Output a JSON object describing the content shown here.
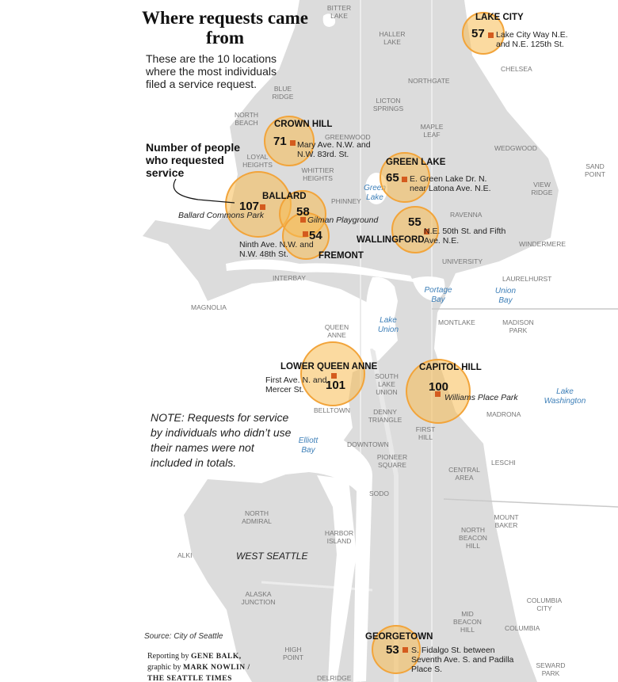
{
  "title": "Where requests came from",
  "intro": "These are the 10 locations where the most individuals filed a service request.",
  "callout": "Number of people who requested service",
  "note": "NOTE: Requests for service by individuals who didn’t use their names were not included in totals.",
  "source": "Source: City of Seattle",
  "credits": {
    "line1_prefix": "Reporting by",
    "line1_name": "GENE BALK,",
    "line2_prefix": "graphic by",
    "line2_name": "MARK NOWLIN /",
    "line3_name": "THE SEATTLE TIMES"
  },
  "locations": [
    {
      "count": "57",
      "name": "LAKE CITY",
      "address": "Lake City Way N.E. and N.E. 125th St."
    },
    {
      "count": "71",
      "name": "CROWN HILL",
      "address": "Mary Ave. N.W. and N.W. 83rd. St."
    },
    {
      "count": "65",
      "name": "GREEN LAKE",
      "address": "E. Green Lake Dr. N. near Latona Ave. N.E."
    },
    {
      "count": "107",
      "name": "BALLARD",
      "address": "Ballard Commons Park"
    },
    {
      "count": "58",
      "name": "",
      "address": "Gilman Playground"
    },
    {
      "count": "54",
      "name": "FREMONT",
      "address": "Ninth Ave. N.W. and N.W. 48th St."
    },
    {
      "count": "55",
      "name": "WALLINGFORD",
      "address": "N.E. 50th St. and Fifth Ave. N.E."
    },
    {
      "count": "101",
      "name": "LOWER QUEEN ANNE",
      "address": "First Ave. N. and Mercer St."
    },
    {
      "count": "100",
      "name": "CAPITOL HILL",
      "address": "Williams Place Park"
    },
    {
      "count": "53",
      "name": "GEORGETOWN",
      "address": "S. Fidalgo St. between Seventh Ave. S. and Padilla Place S."
    }
  ],
  "neighborhoods": [
    "BITTER LAKE",
    "HALLER LAKE",
    "NORTHGATE",
    "CHELSEA",
    "BLUE RIDGE",
    "LICTON SPRINGS",
    "NORTH BEACH",
    "GREENWOOD",
    "MAPLE LEAF",
    "WEDGWOOD",
    "LOYAL HEIGHTS",
    "WHITTIER HEIGHTS",
    "SAND POINT",
    "VIEW RIDGE",
    "PHINNEY",
    "RAVENNA",
    "WINDERMERE",
    "UNIVERSITY",
    "LAURELHURST",
    "INTERBAY",
    "MAGNOLIA",
    "MONTLAKE",
    "MADISON PARK",
    "QUEEN ANNE",
    "SOUTH LAKE UNION",
    "BELLTOWN",
    "DENNY TRIANGLE",
    "MADRONA",
    "FIRST HILL",
    "DOWNTOWN",
    "PIONEER SQUARE",
    "CENTRAL AREA",
    "LESCHI",
    "SODO",
    "NORTH ADMIRAL",
    "HARBOR ISLAND",
    "MOUNT BAKER",
    "NORTH BEACON HILL",
    "ALKI",
    "WEST SEATTLE",
    "ALASKA JUNCTION",
    "MID BEACON HILL",
    "COLUMBIA CITY",
    "COLUMBIA",
    "HIGH POINT",
    "SEWARD PARK",
    "DELRIDGE"
  ],
  "water": [
    "Green Lake",
    "Portage Bay",
    "Union Bay",
    "Lake Union",
    "Lake Washington",
    "Elliott Bay"
  ]
}
